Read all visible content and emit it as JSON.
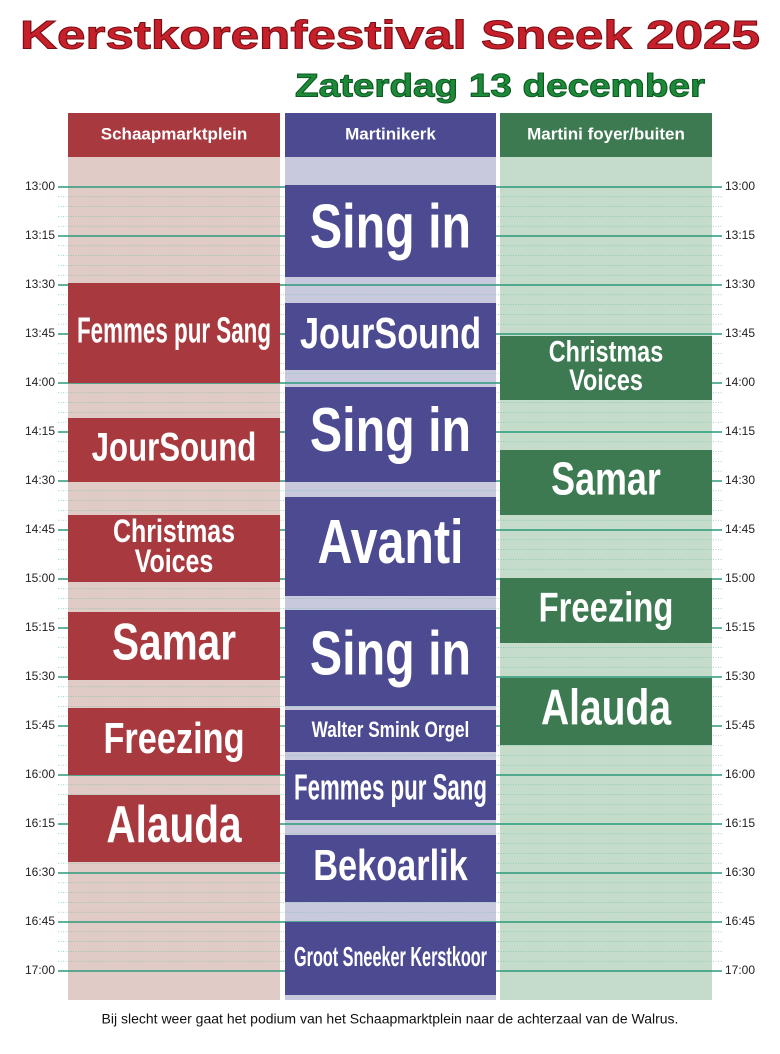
{
  "header": {
    "title": "Kerstkorenfestival Sneek 2025",
    "subtitle": "Zaterdag 13 december"
  },
  "times": [
    "13:00",
    "13:15",
    "13:30",
    "13:45",
    "14:00",
    "14:15",
    "14:30",
    "14:45",
    "15:00",
    "15:15",
    "15:30",
    "15:45",
    "16:00",
    "16:15",
    "16:30",
    "16:45",
    "17:00"
  ],
  "columns": [
    {
      "name": "Schaapmarktplein",
      "events": [
        {
          "label": [
            "Femmes pur Sang"
          ]
        },
        {
          "label": [
            "JourSound"
          ]
        },
        {
          "label": [
            "Christmas",
            "Voices"
          ]
        },
        {
          "label": [
            "Samar"
          ]
        },
        {
          "label": [
            "Freezing"
          ]
        },
        {
          "label": [
            "Alauda"
          ]
        }
      ]
    },
    {
      "name": "Martinikerk",
      "events": [
        {
          "label": [
            "Sing in"
          ]
        },
        {
          "label": [
            "JourSound"
          ]
        },
        {
          "label": [
            "Sing in"
          ]
        },
        {
          "label": [
            "Avanti"
          ]
        },
        {
          "label": [
            "Sing in"
          ]
        },
        {
          "label": [
            "Walter Smink Orgel"
          ]
        },
        {
          "label": [
            "Femmes pur Sang"
          ]
        },
        {
          "label": [
            "Bekoarlik"
          ]
        },
        {
          "label": [
            "Groot Sneeker Kerstkoor"
          ]
        }
      ]
    },
    {
      "name": "Martini foyer/buiten",
      "events": [
        {
          "label": [
            "Christmas",
            "Voices"
          ]
        },
        {
          "label": [
            "Samar"
          ]
        },
        {
          "label": [
            "Freezing"
          ]
        },
        {
          "label": [
            "Alauda"
          ]
        }
      ]
    }
  ],
  "footer": "Bij slecht weer gaat het podium van het Schaapmarktplein naar de achterzaal van de Walrus."
}
